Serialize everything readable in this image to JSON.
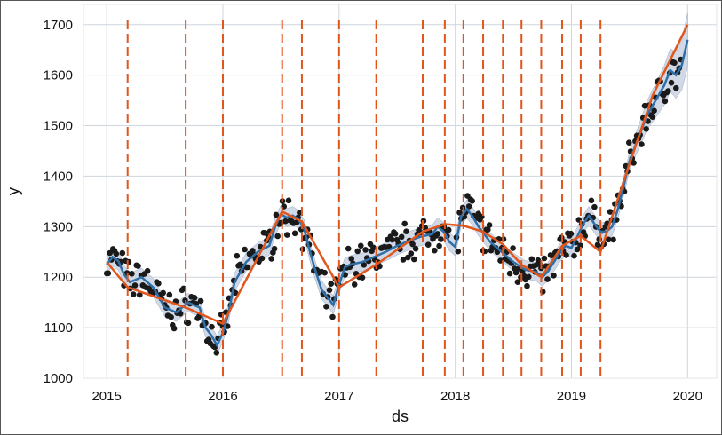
{
  "chart_data": {
    "type": "line",
    "title": "",
    "xlabel": "ds",
    "ylabel": "y",
    "xlim": [
      2014.8,
      2020.25
    ],
    "ylim": [
      1000,
      1740
    ],
    "x_ticks": [
      2015,
      2016,
      2017,
      2018,
      2019,
      2020
    ],
    "x_tick_labels": [
      "2015",
      "2016",
      "2017",
      "2018",
      "2019",
      "2020"
    ],
    "y_ticks": [
      1000,
      1100,
      1200,
      1300,
      1400,
      1500,
      1600,
      1700
    ],
    "y_tick_labels": [
      "1000",
      "1100",
      "1200",
      "1300",
      "1400",
      "1500",
      "1600",
      "1700"
    ],
    "grid": true,
    "legend": "none",
    "colors": {
      "observed": "#1a1a1a",
      "forecast": "#2f6fa8",
      "uncertainty": "#c9d2e3",
      "trend": "#e0561c",
      "changepoint": "#e0561c",
      "grid": "#cfd6dd"
    },
    "changepoints": [
      2015.18,
      2015.68,
      2016.0,
      2016.51,
      2016.68,
      2017.0,
      2017.32,
      2017.72,
      2017.91,
      2018.07,
      2018.24,
      2018.41,
      2018.57,
      2018.74,
      2018.92,
      2019.08,
      2019.25
    ],
    "series": [
      {
        "role": "trend",
        "x": [
          2015.0,
          2015.18,
          2015.68,
          2016.0,
          2016.51,
          2016.68,
          2017.0,
          2017.32,
          2017.72,
          2017.91,
          2018.07,
          2018.24,
          2018.41,
          2018.57,
          2018.74,
          2018.92,
          2019.08,
          2019.25,
          2019.45,
          2019.7,
          2020.0
        ],
        "y": [
          1230,
          1180,
          1140,
          1108,
          1330,
          1310,
          1180,
          1225,
          1290,
          1305,
          1302,
          1290,
          1265,
          1225,
          1200,
          1262,
          1282,
          1250,
          1390,
          1560,
          1700
        ]
      },
      {
        "role": "forecast",
        "x": [
          2015.0,
          2015.05,
          2015.1,
          2015.15,
          2015.2,
          2015.3,
          2015.4,
          2015.5,
          2015.6,
          2015.7,
          2015.8,
          2015.85,
          2015.9,
          2015.95,
          2016.0,
          2016.05,
          2016.1,
          2016.2,
          2016.3,
          2016.4,
          2016.45,
          2016.5,
          2016.55,
          2016.6,
          2016.65,
          2016.7,
          2016.75,
          2016.8,
          2016.85,
          2016.9,
          2016.95,
          2017.0,
          2017.05,
          2017.1,
          2017.2,
          2017.3,
          2017.4,
          2017.5,
          2017.6,
          2017.7,
          2017.8,
          2017.85,
          2017.9,
          2017.95,
          2018.0,
          2018.05,
          2018.1,
          2018.15,
          2018.2,
          2018.3,
          2018.4,
          2018.5,
          2018.6,
          2018.7,
          2018.75,
          2018.8,
          2018.85,
          2018.9,
          2018.95,
          2019.0,
          2019.05,
          2019.1,
          2019.15,
          2019.2,
          2019.25,
          2019.3,
          2019.35,
          2019.4,
          2019.45,
          2019.5,
          2019.55,
          2019.6,
          2019.65,
          2019.7,
          2019.75,
          2019.8,
          2019.85,
          2019.9,
          2019.95,
          2020.0
        ],
        "y": [
          1225,
          1240,
          1232,
          1205,
          1190,
          1200,
          1180,
          1140,
          1130,
          1150,
          1140,
          1100,
          1085,
          1065,
          1090,
          1130,
          1190,
          1230,
          1250,
          1262,
          1300,
          1325,
          1318,
          1322,
          1315,
          1295,
          1250,
          1210,
          1175,
          1160,
          1145,
          1185,
          1220,
          1225,
          1230,
          1240,
          1250,
          1262,
          1272,
          1280,
          1285,
          1300,
          1290,
          1270,
          1260,
          1320,
          1335,
          1320,
          1300,
          1270,
          1250,
          1230,
          1215,
          1210,
          1200,
          1212,
          1230,
          1248,
          1262,
          1258,
          1280,
          1305,
          1322,
          1305,
          1290,
          1290,
          1300,
          1335,
          1380,
          1430,
          1460,
          1490,
          1520,
          1540,
          1560,
          1580,
          1610,
          1600,
          1620,
          1670
        ]
      }
    ],
    "observed_note": "daily observations scattered around the forecast line"
  }
}
